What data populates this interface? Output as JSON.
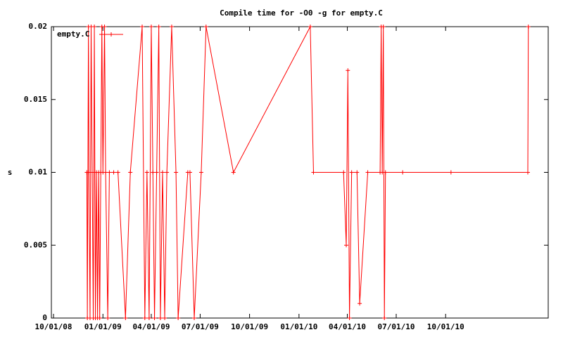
{
  "chart_data": {
    "type": "line",
    "title": "Compile time for -O0 -g for empty.C",
    "y_label": "s",
    "xlim": [
      "2008-09-27",
      "2011-04-10"
    ],
    "xticks": [
      {
        "value": "2008-10-01",
        "label": "10/01/08"
      },
      {
        "value": "2009-01-01",
        "label": "01/01/09"
      },
      {
        "value": "2009-04-01",
        "label": "04/01/09"
      },
      {
        "value": "2009-07-01",
        "label": "07/01/09"
      },
      {
        "value": "2009-10-01",
        "label": "10/01/09"
      },
      {
        "value": "2010-01-01",
        "label": "01/01/10"
      },
      {
        "value": "2010-04-01",
        "label": "04/01/10"
      },
      {
        "value": "2010-07-01",
        "label": "07/01/10"
      },
      {
        "value": "2010-10-01",
        "label": "10/01/10"
      }
    ],
    "ylim": [
      0,
      0.02
    ],
    "yticks": [
      0,
      0.005,
      0.01,
      0.015,
      0.02
    ],
    "legend": "top-left",
    "x": [
      "2008-12-02",
      "2008-12-03",
      "2008-12-05",
      "2008-12-06",
      "2008-12-08",
      "2008-12-10",
      "2008-12-12",
      "2008-12-14",
      "2008-12-16",
      "2008-12-18",
      "2008-12-20",
      "2008-12-22",
      "2008-12-24",
      "2008-12-26",
      "2008-12-28",
      "2008-12-30",
      "2009-01-01",
      "2009-01-04",
      "2009-01-06",
      "2009-01-10",
      "2009-01-13",
      "2009-01-21",
      "2009-01-29",
      "2009-02-12",
      "2009-02-21",
      "2009-03-15",
      "2009-03-20",
      "2009-03-24",
      "2009-03-28",
      "2009-04-01",
      "2009-04-04",
      "2009-04-07",
      "2009-04-11",
      "2009-04-15",
      "2009-04-18",
      "2009-04-22",
      "2009-04-26",
      "2009-04-30",
      "2009-05-09",
      "2009-05-17",
      "2009-05-21",
      "2009-06-08",
      "2009-06-12",
      "2009-06-20",
      "2009-07-03",
      "2009-07-12",
      "2009-09-01",
      "2010-01-22",
      "2010-01-28",
      "2010-03-25",
      "2010-03-30",
      "2010-04-02",
      "2010-04-05",
      "2010-04-09",
      "2010-04-19",
      "2010-04-24",
      "2010-05-09",
      "2010-06-01",
      "2010-06-03",
      "2010-06-05",
      "2010-06-07",
      "2010-06-09",
      "2010-06-11",
      "2010-07-13",
      "2010-10-11",
      "2011-03-03",
      "2011-03-04"
    ],
    "series": [
      {
        "name": "empty.C",
        "color": "#ff0000",
        "values": [
          0.01,
          0,
          0.02,
          0.01,
          0,
          0.02,
          0.01,
          0,
          0.02,
          0,
          0.01,
          0,
          0.01,
          0,
          0.01,
          0.02,
          0.01,
          0.02,
          0.01,
          0,
          0.01,
          0.01,
          0.01,
          0,
          0.01,
          0.02,
          0,
          0.01,
          0,
          0.02,
          0.01,
          0,
          0.01,
          0.02,
          0,
          0.01,
          0,
          0.01,
          0.02,
          0.01,
          0,
          0.01,
          0.01,
          0,
          0.01,
          0.02,
          0.01,
          0.02,
          0.01,
          0.01,
          0.005,
          0.017,
          0,
          0.01,
          0.01,
          0.001,
          0.01,
          0.01,
          0.02,
          0.01,
          0.02,
          0,
          0.01,
          0.01,
          0.01,
          0.01,
          0.02
        ]
      }
    ]
  }
}
